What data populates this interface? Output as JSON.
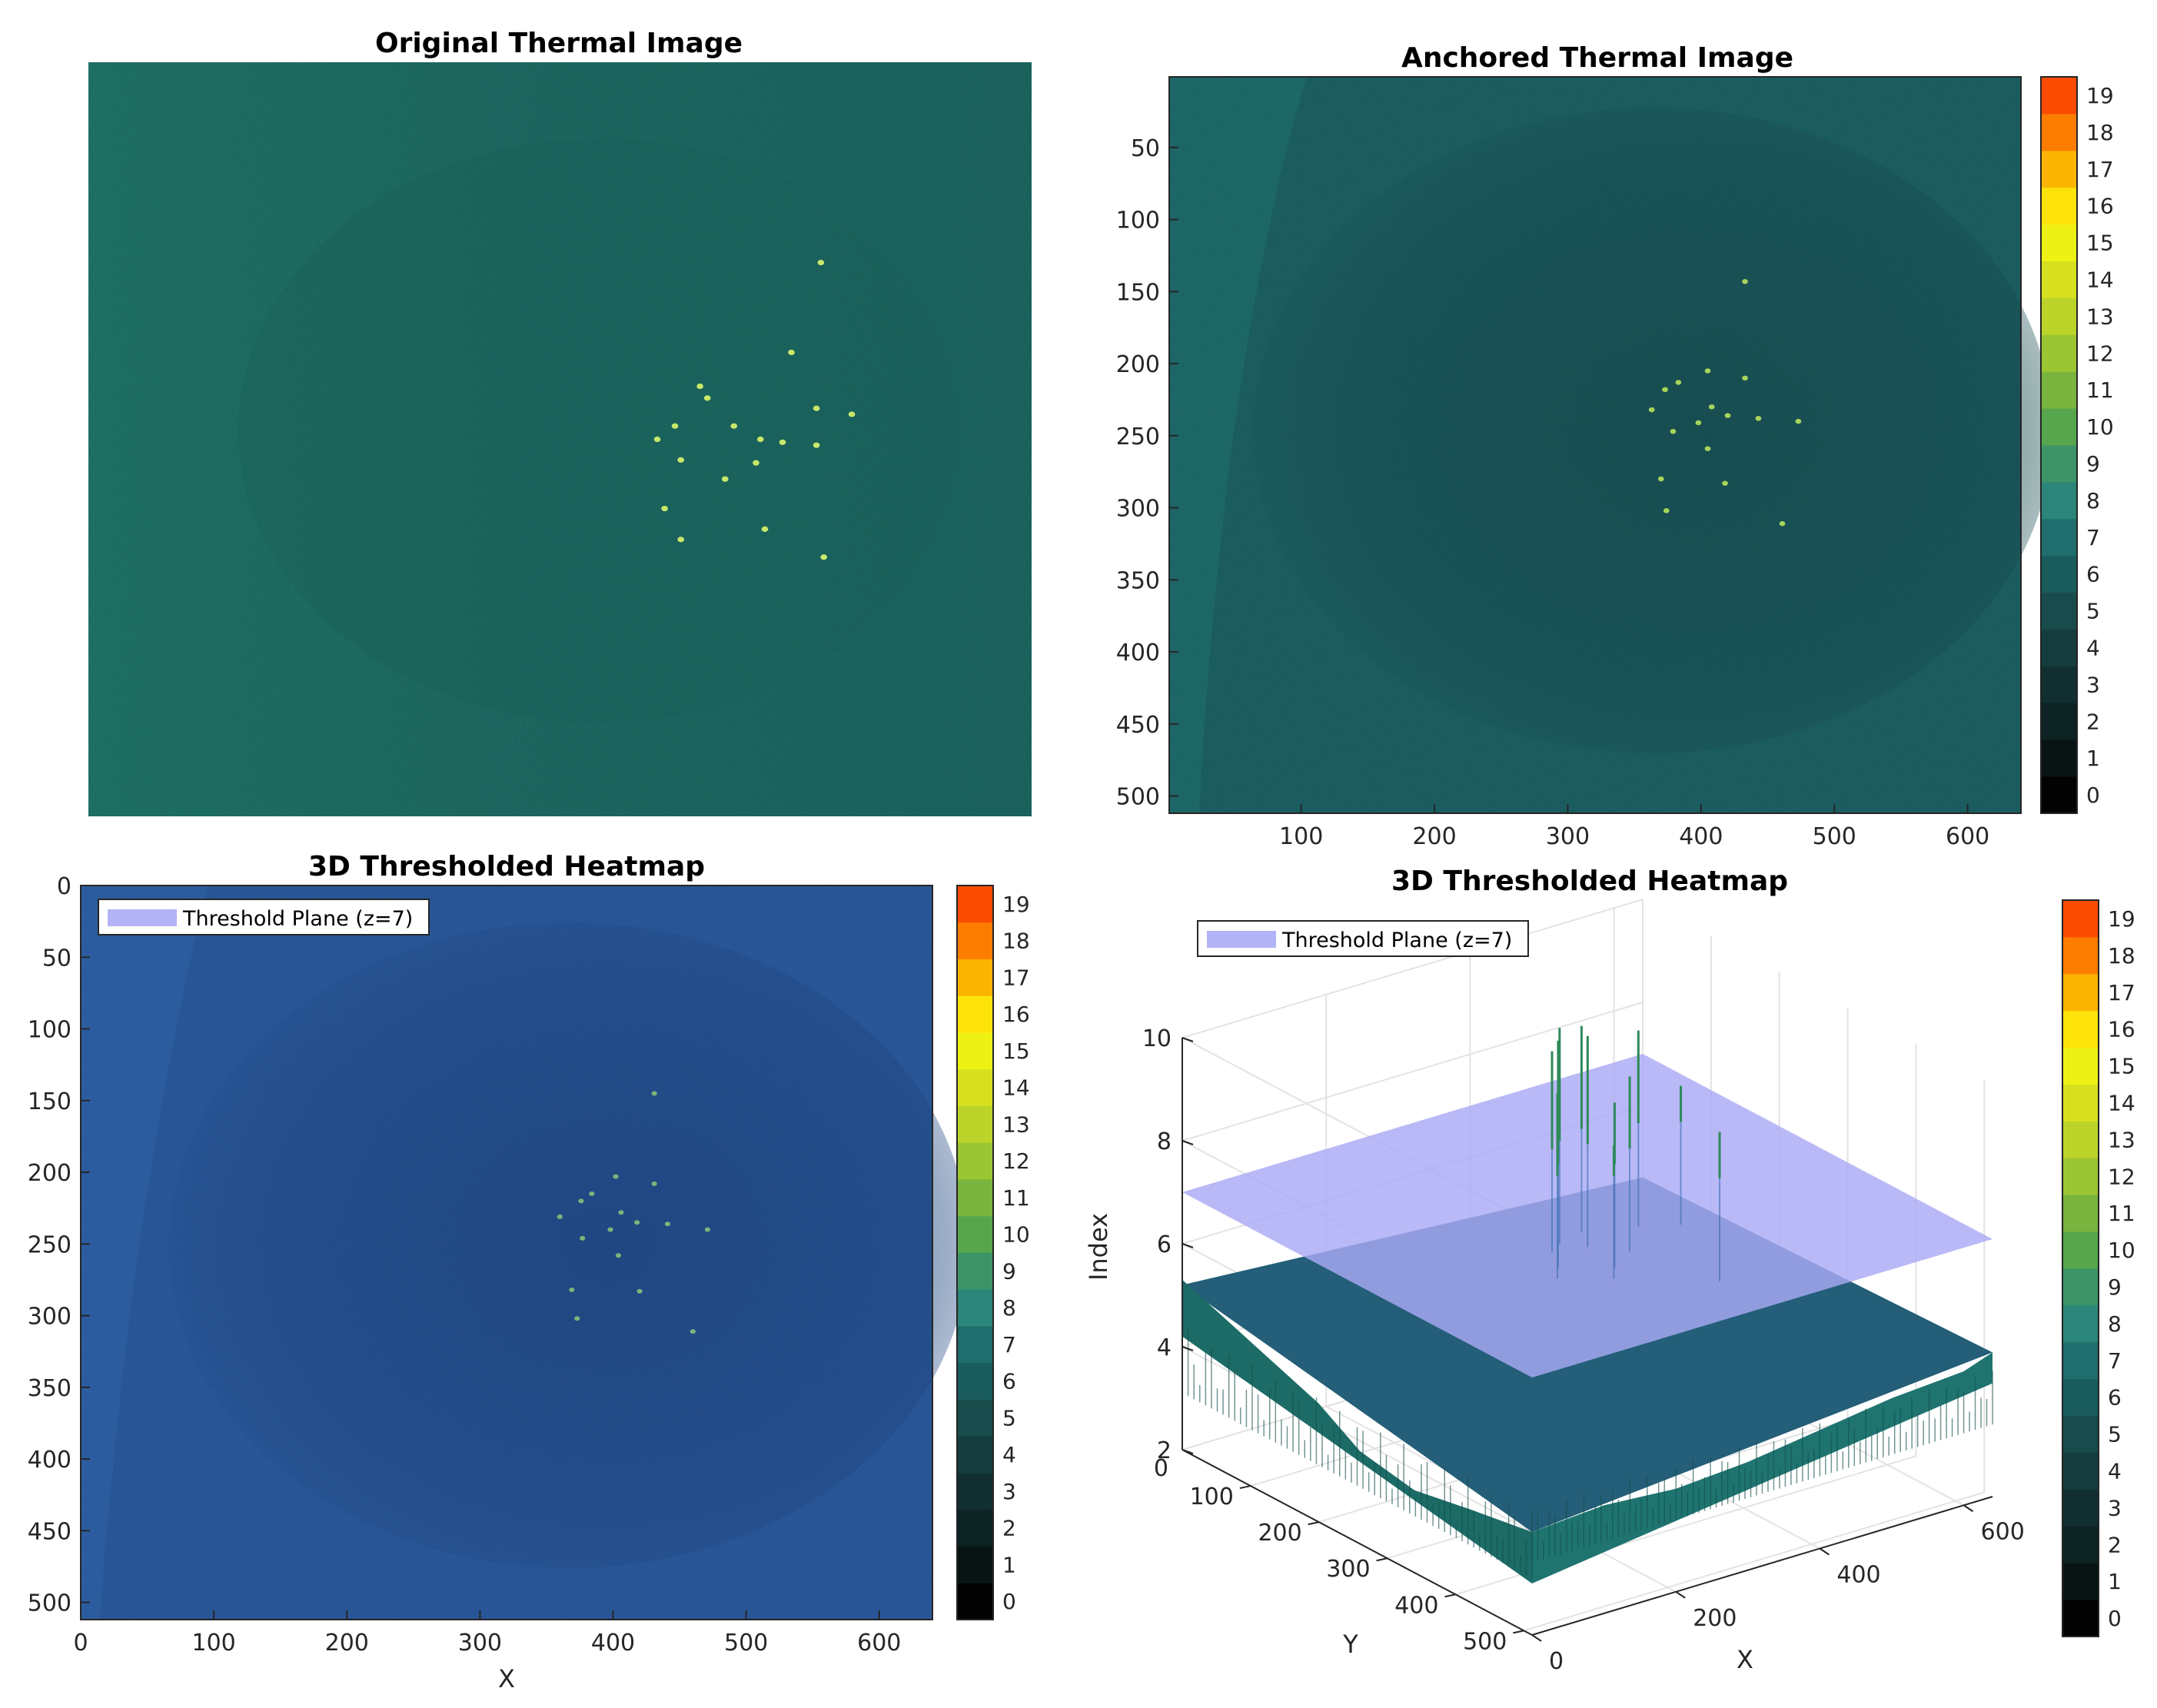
{
  "colors": {
    "teal_bg": "#1f6f66",
    "anchored_bg": "#1c5e62",
    "anchored_dark": "#174b4e",
    "blue_bg": "#2a579a",
    "blue_dark": "#224a86",
    "plane": "#b3b3f7",
    "hotspot": "#c8e86a",
    "surface": "#1e6b66"
  },
  "chart_data": [
    {
      "id": "original",
      "type": "heatmap",
      "title": "Original Thermal Image",
      "axes_visible": false,
      "hotspots": [
        {
          "x": 497,
          "y": 136
        },
        {
          "x": 415,
          "y": 220
        },
        {
          "x": 477,
          "y": 197
        },
        {
          "x": 494,
          "y": 235
        },
        {
          "x": 494,
          "y": 260
        },
        {
          "x": 420,
          "y": 228
        },
        {
          "x": 438,
          "y": 247
        },
        {
          "x": 456,
          "y": 256
        },
        {
          "x": 453,
          "y": 272
        },
        {
          "x": 471,
          "y": 258
        },
        {
          "x": 386,
          "y": 256
        },
        {
          "x": 398,
          "y": 247
        },
        {
          "x": 402,
          "y": 270
        },
        {
          "x": 432,
          "y": 283
        },
        {
          "x": 518,
          "y": 239
        },
        {
          "x": 391,
          "y": 303
        },
        {
          "x": 402,
          "y": 324
        },
        {
          "x": 459,
          "y": 317
        },
        {
          "x": 499,
          "y": 336
        }
      ]
    },
    {
      "id": "anchored",
      "type": "heatmap",
      "title": "Anchored Thermal Image",
      "xlim": [
        1,
        640
      ],
      "ylim": [
        1,
        512
      ],
      "xticks": [
        100,
        200,
        300,
        400,
        500,
        600
      ],
      "yticks": [
        50,
        100,
        150,
        200,
        250,
        300,
        350,
        400,
        450,
        500
      ],
      "clim": [
        0,
        19
      ],
      "colorbar_ticks": [
        0,
        1,
        2,
        3,
        4,
        5,
        6,
        7,
        8,
        9,
        10,
        11,
        12,
        13,
        14,
        15,
        16,
        17,
        18,
        19
      ],
      "hotspots": [
        {
          "x": 433,
          "y": 143
        },
        {
          "x": 373,
          "y": 218
        },
        {
          "x": 405,
          "y": 205
        },
        {
          "x": 433,
          "y": 210
        },
        {
          "x": 443,
          "y": 238
        },
        {
          "x": 383,
          "y": 213
        },
        {
          "x": 408,
          "y": 230
        },
        {
          "x": 420,
          "y": 236
        },
        {
          "x": 405,
          "y": 259
        },
        {
          "x": 398,
          "y": 241
        },
        {
          "x": 363,
          "y": 232
        },
        {
          "x": 379,
          "y": 247
        },
        {
          "x": 418,
          "y": 283
        },
        {
          "x": 473,
          "y": 240
        },
        {
          "x": 370,
          "y": 280
        },
        {
          "x": 374,
          "y": 302
        },
        {
          "x": 461,
          "y": 311
        }
      ]
    },
    {
      "id": "thresholded2d",
      "type": "heatmap",
      "title": "3D Thresholded Heatmap",
      "xlabel": "X",
      "xlim": [
        0,
        640
      ],
      "ylim": [
        0,
        512
      ],
      "xticks": [
        0,
        100,
        200,
        300,
        400,
        500,
        600
      ],
      "yticks": [
        0,
        50,
        100,
        150,
        200,
        250,
        300,
        350,
        400,
        450,
        500
      ],
      "clim": [
        0,
        19
      ],
      "colorbar_ticks": [
        0,
        1,
        2,
        3,
        4,
        5,
        6,
        7,
        8,
        9,
        10,
        11,
        12,
        13,
        14,
        15,
        16,
        17,
        18,
        19
      ],
      "legend": {
        "label": "Threshold Plane (z=7)",
        "location": "top-left"
      },
      "hotspots": [
        {
          "x": 431,
          "y": 145
        },
        {
          "x": 376,
          "y": 220
        },
        {
          "x": 402,
          "y": 203
        },
        {
          "x": 431,
          "y": 208
        },
        {
          "x": 441,
          "y": 236
        },
        {
          "x": 384,
          "y": 215
        },
        {
          "x": 406,
          "y": 228
        },
        {
          "x": 418,
          "y": 235
        },
        {
          "x": 404,
          "y": 258
        },
        {
          "x": 398,
          "y": 240
        },
        {
          "x": 360,
          "y": 231
        },
        {
          "x": 377,
          "y": 246
        },
        {
          "x": 420,
          "y": 283
        },
        {
          "x": 471,
          "y": 240
        },
        {
          "x": 369,
          "y": 282
        },
        {
          "x": 373,
          "y": 302
        },
        {
          "x": 460,
          "y": 311
        }
      ]
    },
    {
      "id": "thresholded3d",
      "type": "surface3d",
      "title": "3D Thresholded Heatmap",
      "xlabel": "X",
      "ylabel": "Y",
      "zlabel": "Index",
      "xlim": [
        0,
        640
      ],
      "ylim": [
        0,
        512
      ],
      "zlim": [
        2,
        10
      ],
      "xticks": [
        0,
        200,
        400,
        600
      ],
      "yticks": [
        100,
        200,
        300,
        400,
        500
      ],
      "yzero_label": "0",
      "zticks": [
        2,
        4,
        6,
        8,
        10
      ],
      "threshold_z": 7,
      "clim": [
        0,
        19
      ],
      "colorbar_ticks": [
        0,
        1,
        2,
        3,
        4,
        5,
        6,
        7,
        8,
        9,
        10,
        11,
        12,
        13,
        14,
        15,
        16,
        17,
        18,
        19
      ],
      "legend": {
        "label": "Threshold Plane (z=7)",
        "location": "top-left"
      },
      "surface_edge_front_left": [
        {
          "y": 0,
          "z": 5.3
        },
        {
          "y": 60,
          "z": 5.0
        },
        {
          "y": 120,
          "z": 4.7
        },
        {
          "y": 200,
          "z": 4.3
        },
        {
          "y": 260,
          "z": 3.8
        },
        {
          "y": 340,
          "z": 3.6
        },
        {
          "y": 420,
          "z": 3.8
        },
        {
          "y": 512,
          "z": 4.0
        }
      ],
      "surface_edge_front_right": [
        {
          "x": 0,
          "z": 4.0
        },
        {
          "x": 100,
          "z": 4.1
        },
        {
          "x": 200,
          "z": 4.0
        },
        {
          "x": 300,
          "z": 4.1
        },
        {
          "x": 400,
          "z": 4.3
        },
        {
          "x": 500,
          "z": 4.5
        },
        {
          "x": 600,
          "z": 4.6
        },
        {
          "x": 640,
          "z": 4.8
        }
      ],
      "spikes": [
        {
          "x": 400,
          "y": 120,
          "z": 8.9
        },
        {
          "x": 380,
          "y": 150,
          "z": 9.4
        },
        {
          "x": 420,
          "y": 110,
          "z": 9.2
        },
        {
          "x": 440,
          "y": 130,
          "z": 9.1
        },
        {
          "x": 360,
          "y": 170,
          "z": 8.6
        },
        {
          "x": 460,
          "y": 100,
          "z": 9.0
        },
        {
          "x": 470,
          "y": 160,
          "z": 8.4
        },
        {
          "x": 520,
          "y": 120,
          "z": 8.8
        },
        {
          "x": 500,
          "y": 260,
          "z": 7.9
        },
        {
          "x": 430,
          "y": 180,
          "z": 8.2
        },
        {
          "x": 410,
          "y": 200,
          "z": 7.6
        },
        {
          "x": 560,
          "y": 140,
          "z": 7.7
        }
      ]
    }
  ]
}
